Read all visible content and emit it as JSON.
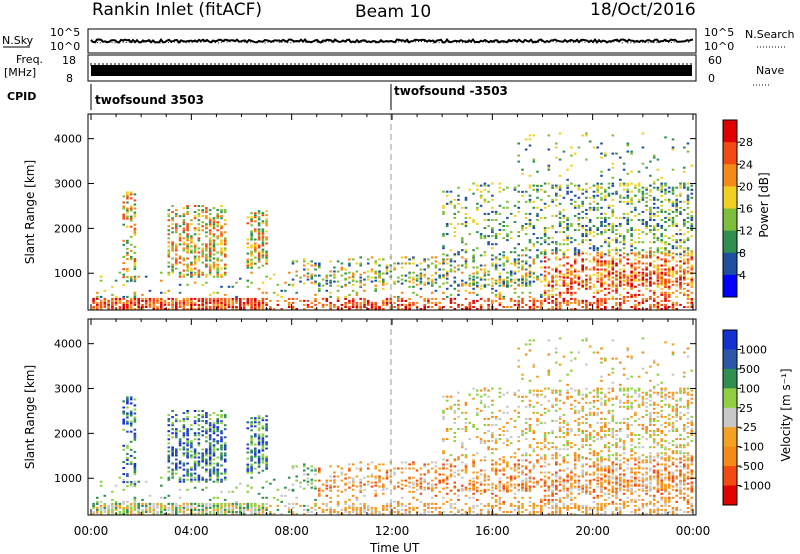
{
  "header": {
    "left": "Rankin Inlet (fitACF)",
    "center": "Beam 10",
    "right": "18/Oct/2016"
  },
  "noise_panel": {
    "left_label": "N.Sky",
    "left_ticks": [
      "10^5",
      "10^0"
    ],
    "right_ticks": [
      "10^5",
      "10^0"
    ],
    "right_label": "N.Search"
  },
  "freq_panel": {
    "left_label_1": "Freq.",
    "left_label_2": "[MHz]",
    "left_ticks": [
      "18",
      "8"
    ],
    "right_ticks": [
      "60",
      "0"
    ],
    "right_label": "Nave"
  },
  "cpid": {
    "label": "CPID",
    "segments": [
      "twofsound 3503",
      "twofsound -3503"
    ]
  },
  "colors": {
    "power": [
      "#0000ff",
      "#1f4fa0",
      "#2f8f4f",
      "#7dbf3a",
      "#f0d020",
      "#f58a18",
      "#f24a10",
      "#e00000"
    ],
    "velocity": [
      "#e00000",
      "#f24a10",
      "#f58a18",
      "#f5a020",
      "#c8c8c8",
      "#8fd040",
      "#2f8f4f",
      "#2a57a8",
      "#1530d0"
    ]
  },
  "chart_data": [
    {
      "type": "heatmap",
      "name": "Power",
      "ylabel": "Slant Range [km]",
      "y_ticks": [
        1000,
        2000,
        3000,
        4000
      ],
      "ylim": [
        180,
        4550
      ],
      "x_ticks": [
        "00:00",
        "04:00",
        "08:00",
        "12:00",
        "16:00",
        "20:00",
        "00:00"
      ],
      "xlim_hours": [
        0,
        24
      ],
      "colorbar_label": "Power [dB]",
      "colorbar_ticks": [
        "4",
        "8",
        "12",
        "16",
        "20",
        "24",
        "28"
      ],
      "colorbar_range": [
        0,
        32
      ]
    },
    {
      "type": "heatmap",
      "name": "Velocity",
      "ylabel": "Slant Range [km]",
      "y_ticks": [
        1000,
        2000,
        3000,
        4000
      ],
      "ylim": [
        180,
        4550
      ],
      "x_ticks": [
        "00:00",
        "04:00",
        "08:00",
        "12:00",
        "16:00",
        "20:00",
        "00:00"
      ],
      "xlim_hours": [
        0,
        24
      ],
      "xlabel": "Time UT",
      "colorbar_label": "Velocity [m s⁻¹]",
      "colorbar_ticks": [
        "1000",
        "500",
        "100",
        "25",
        "-25",
        "-100",
        "-500",
        "-1000"
      ]
    }
  ]
}
